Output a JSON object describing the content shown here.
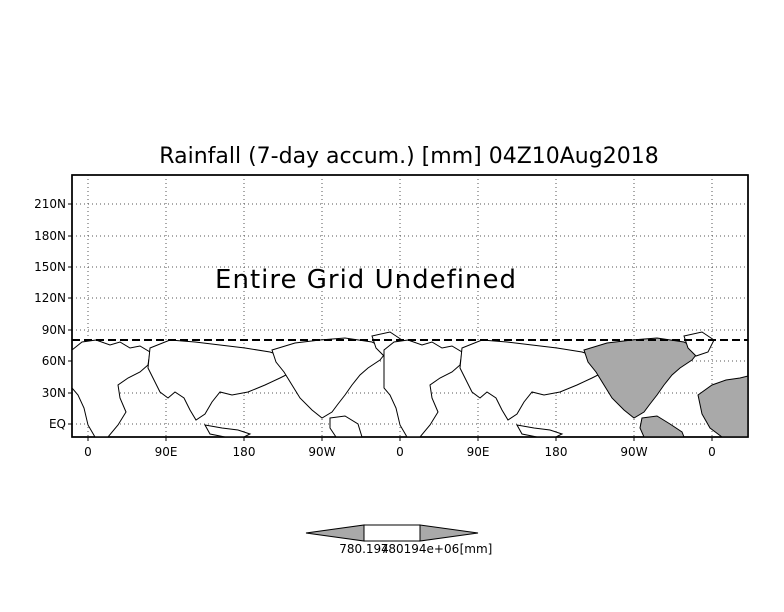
{
  "title": "Rainfall (7-day accum.) [mm] 04Z10Aug2018",
  "message": "Entire Grid Undefined",
  "axes": {
    "y_labels": [
      "210N",
      "180N",
      "150N",
      "120N",
      "90N",
      "60N",
      "30N",
      "EQ"
    ],
    "x_labels": [
      "0",
      "90E",
      "180",
      "90W",
      "0",
      "90E",
      "180",
      "90W",
      "0"
    ]
  },
  "colorbar": {
    "labels": [
      "780.194",
      "780194e+06",
      "[mm]"
    ]
  },
  "colors": {
    "land_fill": "#a9a9a9",
    "grid": "#444444",
    "outline": "#000000"
  }
}
